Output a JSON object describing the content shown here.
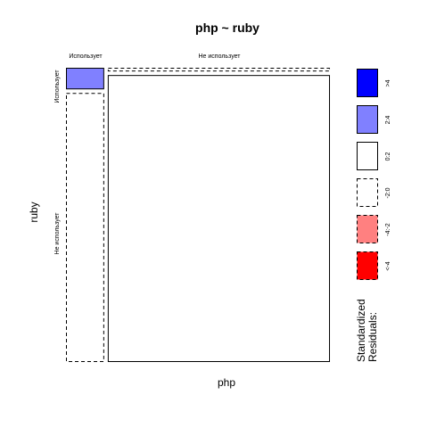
{
  "chart_data": {
    "type": "mosaic",
    "title": "php ~ ruby",
    "xlabel": "php",
    "ylabel": "ruby",
    "x_levels": [
      "Использует",
      "Не использует"
    ],
    "y_levels": [
      "Использует",
      "Не использует"
    ],
    "cells": [
      {
        "php": "Использует",
        "ruby": "Использует",
        "proportion": 0.0109,
        "residual_class": "2:4"
      },
      {
        "php": "Использует",
        "ruby": "Не использует",
        "proportion": 0.1359,
        "residual_class": "-2:0"
      },
      {
        "php": "Не использует",
        "ruby": "Использует",
        "proportion": 0.0109,
        "residual_class": "-2:0"
      },
      {
        "php": "Не использует",
        "ruby": "Не использует",
        "proportion": 0.8424,
        "residual_class": "0:2"
      }
    ],
    "legend": {
      "title_lines": [
        "Standardized",
        "Residuals:"
      ],
      "entries": [
        {
          "label": ">4",
          "fill": "#0000ff",
          "dashed": false
        },
        {
          "label": "2:4",
          "fill": "#8080ff",
          "dashed": false
        },
        {
          "label": "0:2",
          "fill": "#ffffff",
          "dashed": false
        },
        {
          "label": "-2:0",
          "fill": "#ffffff",
          "dashed": true
        },
        {
          "label": "-4:-2",
          "fill": "#ff8080",
          "dashed": true
        },
        {
          "label": "<-4",
          "fill": "#ff0000",
          "dashed": true
        }
      ]
    }
  }
}
